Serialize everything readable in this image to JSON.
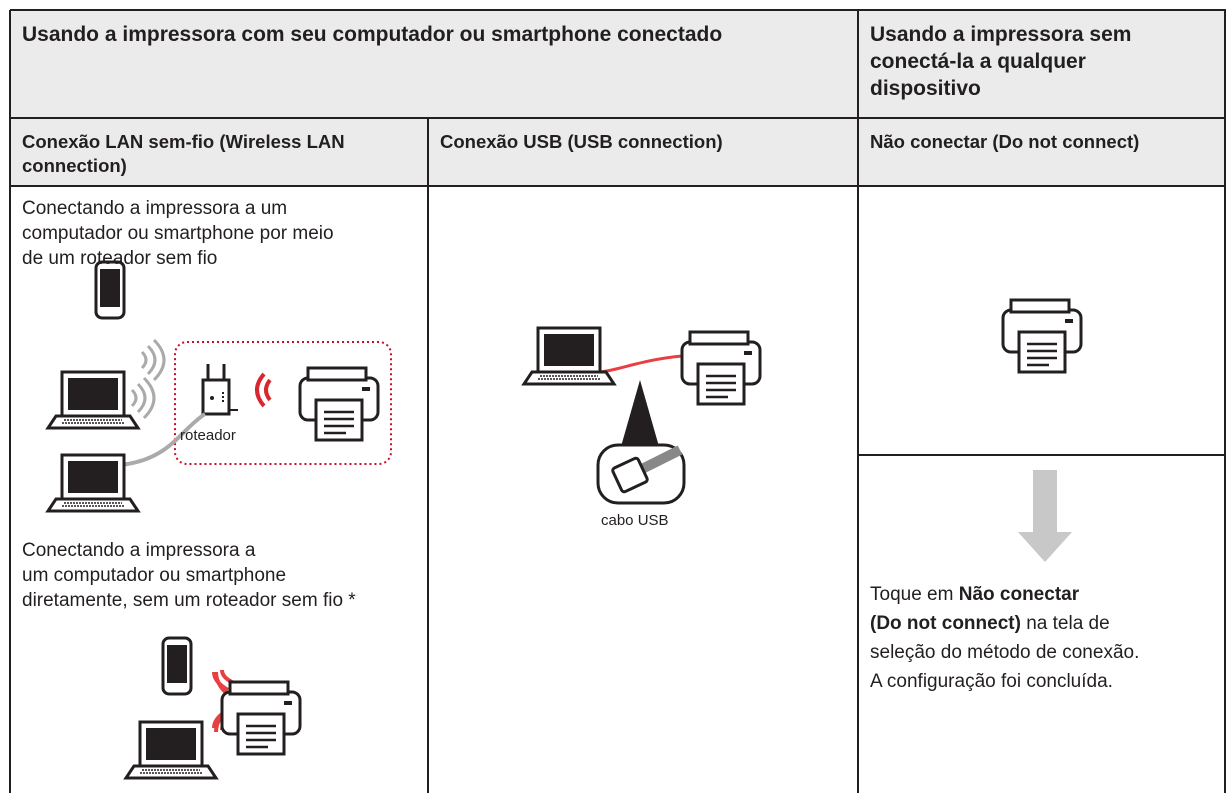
{
  "header": {
    "left": "Usando a impressora com seu computador ou smartphone conectado",
    "right": "Usando a impressora sem conectá-la a qualquer dispositivo"
  },
  "subheaders": [
    "Conexão LAN sem-fio (Wireless LAN connection)",
    "Conexão USB (USB connection)",
    "Não conectar (Do not connect)"
  ],
  "wireless": {
    "router_text": [
      "Conectando a impressora a um",
      "computador ou smartphone por meio",
      "de um roteador sem fio"
    ],
    "router_label": "roteador",
    "direct_text": [
      "Conectando a impressora a",
      "um computador ou smartphone",
      "diretamente, sem um roteador sem fio *"
    ]
  },
  "usb": {
    "cable_label": "cabo USB"
  },
  "no_connect": {
    "instruction": {
      "before": "Toque em",
      "bold": [
        "Não conectar",
        "(Do not connect)"
      ],
      "after": "na tela de",
      "line2": "seleção do método de conexão.",
      "line3": "A configuração foi concluída."
    }
  }
}
